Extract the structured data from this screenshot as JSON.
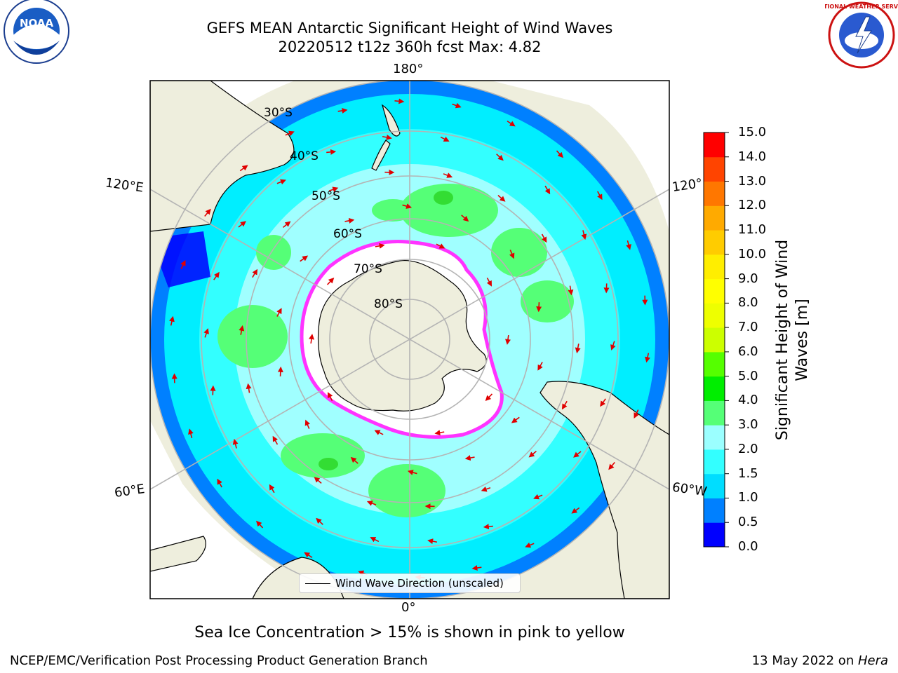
{
  "title_line1": "GEFS MEAN Antarctic Significant Height of Wind Waves",
  "title_line2": "20220512 t12z 360h fcst   Max: 4.82",
  "logos": {
    "left": "noaa-logo",
    "left_text": "NOAA",
    "right": "national-weather-service-logo",
    "right_text": "NATIONAL WEATHER SERVICE"
  },
  "map": {
    "projection": "south-polar-stereographic",
    "lon_labels": {
      "top": "180°",
      "upper_left": "120°E",
      "upper_right": "120°",
      "lower_left": "60°E",
      "lower_right": "60°W",
      "bottom": "0°"
    },
    "lat_labels": [
      "30°S",
      "40°S",
      "50°S",
      "60°S",
      "70°S",
      "80°S"
    ],
    "colors": {
      "land": "#eeeedd",
      "ice_white": "#ffffff",
      "ice_edge": "#ff33ff",
      "arrows": "#ff0000",
      "ring_1": "#0080ff",
      "ring_2": "#00eeff",
      "ring_3": "#a0ffff",
      "ring_4": "#55ff77"
    }
  },
  "legend": {
    "label": "Wind Wave Direction (unscaled)"
  },
  "colorbar": {
    "label": "Significant Height of Wind Waves [m]",
    "ticks": [
      "0.0",
      "0.5",
      "1.0",
      "1.5",
      "2.0",
      "3.0",
      "4.0",
      "5.0",
      "6.0",
      "7.0",
      "8.0",
      "9.0",
      "10.0",
      "11.0",
      "12.0",
      "13.0",
      "14.0",
      "15.0"
    ],
    "colors": [
      "#0000ff",
      "#0080ff",
      "#00ddff",
      "#33ffff",
      "#9bffff",
      "#55ff77",
      "#00ee00",
      "#55ff00",
      "#ccff00",
      "#eeff00",
      "#ffff00",
      "#ffee00",
      "#ffcc00",
      "#ffaa00",
      "#ff7700",
      "#ff4400",
      "#ff0000"
    ]
  },
  "ice_note": "Sea Ice Concentration > 15% is shown in pink to yellow",
  "footer": {
    "left": "NCEP/EMC/Verification Post Processing Product Generation Branch",
    "right_date": "13 May 2022 on ",
    "right_host": "Hera"
  }
}
